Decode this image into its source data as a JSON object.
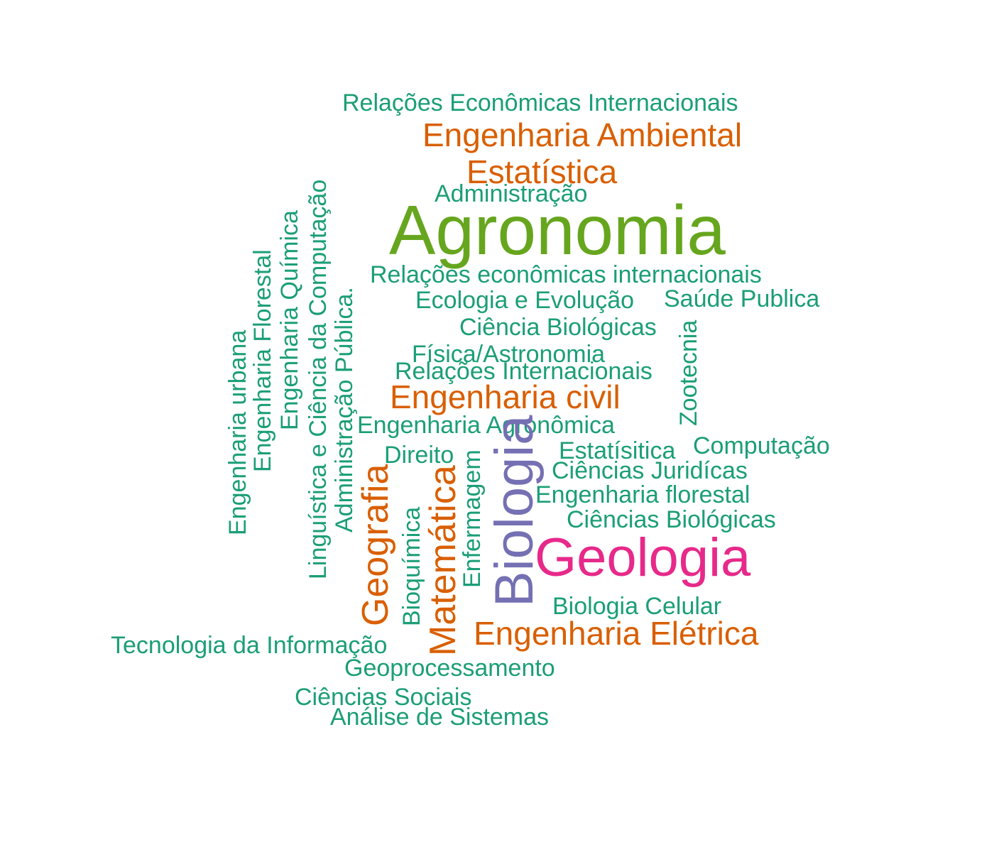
{
  "words": [
    {
      "text": "Agronomia",
      "color": "#66a61e",
      "weight": 5
    },
    {
      "text": "Geologia",
      "color": "#e7298a",
      "weight": 4
    },
    {
      "text": "Biologia",
      "color": "#7570b3",
      "weight": 4
    },
    {
      "text": "Engenharia Ambiental",
      "color": "#d95f02",
      "weight": 3
    },
    {
      "text": "Estatística",
      "color": "#d95f02",
      "weight": 3
    },
    {
      "text": "Engenharia civil",
      "color": "#d95f02",
      "weight": 3
    },
    {
      "text": "Engenharia Elétrica",
      "color": "#d95f02",
      "weight": 3
    },
    {
      "text": "Geografia",
      "color": "#d95f02",
      "weight": 3
    },
    {
      "text": "Matemática",
      "color": "#d95f02",
      "weight": 3
    },
    {
      "text": "Relações Econômicas Internacionais",
      "color": "#1b9e77",
      "weight": 1
    },
    {
      "text": "Administração",
      "color": "#1b9e77",
      "weight": 1
    },
    {
      "text": "Relações econômicas internacionais",
      "color": "#1b9e77",
      "weight": 1
    },
    {
      "text": "Ecologia e Evolução",
      "color": "#1b9e77",
      "weight": 1
    },
    {
      "text": "Saúde Publica",
      "color": "#1b9e77",
      "weight": 1
    },
    {
      "text": "Ciência Biológicas",
      "color": "#1b9e77",
      "weight": 1
    },
    {
      "text": "Física/Astronomia",
      "color": "#1b9e77",
      "weight": 1
    },
    {
      "text": "Relações Internacionais",
      "color": "#1b9e77",
      "weight": 1
    },
    {
      "text": "Engenharia Agronômica",
      "color": "#1b9e77",
      "weight": 1
    },
    {
      "text": "Direito",
      "color": "#1b9e77",
      "weight": 1
    },
    {
      "text": "Estatísitica",
      "color": "#1b9e77",
      "weight": 1
    },
    {
      "text": "Computação",
      "color": "#1b9e77",
      "weight": 1
    },
    {
      "text": "Ciências Juridícas",
      "color": "#1b9e77",
      "weight": 1
    },
    {
      "text": "Engenharia florestal",
      "color": "#1b9e77",
      "weight": 1
    },
    {
      "text": "Ciências Biológicas",
      "color": "#1b9e77",
      "weight": 1
    },
    {
      "text": "Biologia Celular",
      "color": "#1b9e77",
      "weight": 1
    },
    {
      "text": "Tecnologia da Informação",
      "color": "#1b9e77",
      "weight": 1
    },
    {
      "text": "Geoprocessamento",
      "color": "#1b9e77",
      "weight": 1
    },
    {
      "text": "Ciências Sociais",
      "color": "#1b9e77",
      "weight": 1
    },
    {
      "text": "Análise de Sistemas",
      "color": "#1b9e77",
      "weight": 1
    },
    {
      "text": "Zootecnia",
      "color": "#1b9e77",
      "weight": 1
    },
    {
      "text": "Engenharia urbana",
      "color": "#1b9e77",
      "weight": 1
    },
    {
      "text": "Engenharia Florestal",
      "color": "#1b9e77",
      "weight": 1
    },
    {
      "text": "Engenharia Química",
      "color": "#1b9e77",
      "weight": 1
    },
    {
      "text": "Linguística e Ciência da Computação",
      "color": "#1b9e77",
      "weight": 1
    },
    {
      "text": "Administração Pública.",
      "color": "#1b9e77",
      "weight": 1
    },
    {
      "text": "Bioquímica",
      "color": "#1b9e77",
      "weight": 1
    },
    {
      "text": "Enfermagem",
      "color": "#1b9e77",
      "weight": 1
    }
  ]
}
